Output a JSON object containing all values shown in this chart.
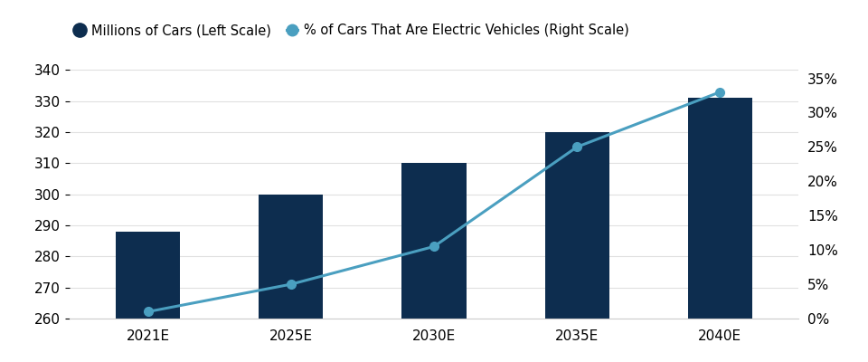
{
  "categories": [
    "2021E",
    "2025E",
    "2030E",
    "2035E",
    "2040E"
  ],
  "bar_values": [
    288,
    300,
    310,
    320,
    331
  ],
  "bar_bottom": 260,
  "line_values": [
    1.0,
    5.0,
    10.5,
    25.0,
    33.0
  ],
  "bar_color": "#0d2d4f",
  "line_color": "#4a9fc0",
  "left_ylim": [
    260,
    345
  ],
  "left_yticks": [
    260,
    270,
    280,
    290,
    300,
    310,
    320,
    330,
    340
  ],
  "right_ylim": [
    0,
    38.5
  ],
  "right_yticks": [
    0,
    5,
    10,
    15,
    20,
    25,
    30,
    35
  ],
  "legend_label_bar": "Millions of Cars (Left Scale)",
  "legend_label_line": "% of Cars That Are Electric Vehicles (Right Scale)",
  "bar_width": 0.45,
  "background_color": "#ffffff",
  "marker_size": 7,
  "line_width": 2.2,
  "tick_label_fontsize": 11,
  "legend_fontsize": 10.5,
  "grid_color": "#e0e0e0",
  "spine_color": "#cccccc"
}
